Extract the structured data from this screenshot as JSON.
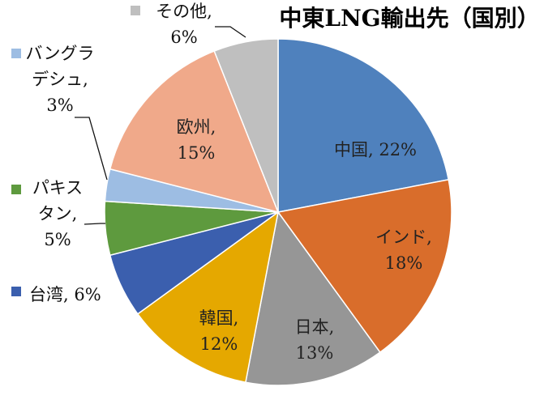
{
  "chart_data": {
    "type": "pie",
    "title": "中東LNG輸出先（国別）",
    "slices": [
      {
        "category": "中国",
        "value": 22,
        "label": "中国, 22%",
        "color": "#4f81bd"
      },
      {
        "category": "インド",
        "value": 18,
        "label": [
          "インド,",
          "18%"
        ],
        "color": "#d96d2b"
      },
      {
        "category": "日本",
        "value": 13,
        "label": [
          "日本,",
          "13%"
        ],
        "color": "#969696"
      },
      {
        "category": "韓国",
        "value": 12,
        "label": [
          "韓国,",
          "12%"
        ],
        "color": "#e5a800"
      },
      {
        "category": "台湾",
        "value": 6,
        "label": "台湾, 6%",
        "color": "#3b5fae"
      },
      {
        "category": "パキスタン",
        "value": 5,
        "label": [
          "パキス",
          "タン,",
          "5%"
        ],
        "color": "#5e9a3e"
      },
      {
        "category": "バングラデシュ",
        "value": 3,
        "label": [
          "バングラ",
          "デシュ,",
          "3%"
        ],
        "color": "#9dbde3"
      },
      {
        "category": "欧州",
        "value": 15,
        "label": [
          "欧州,",
          "15%"
        ],
        "color": "#f0a98a"
      },
      {
        "category": "その他",
        "value": 6,
        "label": [
          "その他,",
          "6%"
        ],
        "color": "#bfbfbf"
      }
    ],
    "legend": "embedded-in-labels"
  }
}
